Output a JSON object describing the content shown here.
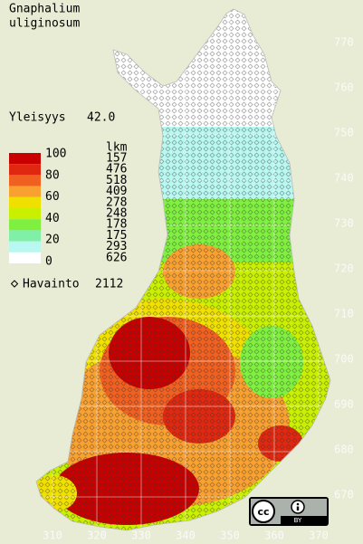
{
  "header": {
    "title_line1": "Gnaphalium",
    "title_line2": "uliginosum"
  },
  "frequency": {
    "label": "Yleisyys",
    "value": "42.0"
  },
  "legend": {
    "scale_labels": [
      "100",
      "80",
      "60",
      "40",
      "20",
      "0"
    ],
    "count_header": "lkm",
    "counts": [
      157,
      476,
      518,
      409,
      278,
      248,
      178,
      175,
      293,
      626
    ],
    "colors": [
      "#c80000",
      "#e02810",
      "#f06020",
      "#f8a030",
      "#f0e000",
      "#c8f000",
      "#80f040",
      "#80f0a8",
      "#b8f8f0",
      "#ffffff"
    ]
  },
  "observations": {
    "label": "Havainto",
    "value": "2112"
  },
  "axes": {
    "y_ticks": [
      770,
      760,
      750,
      740,
      730,
      720,
      710,
      700,
      690,
      680,
      670
    ],
    "x_ticks": [
      310,
      320,
      330,
      340,
      350,
      360,
      370
    ]
  },
  "license": {
    "label": "BY"
  }
}
